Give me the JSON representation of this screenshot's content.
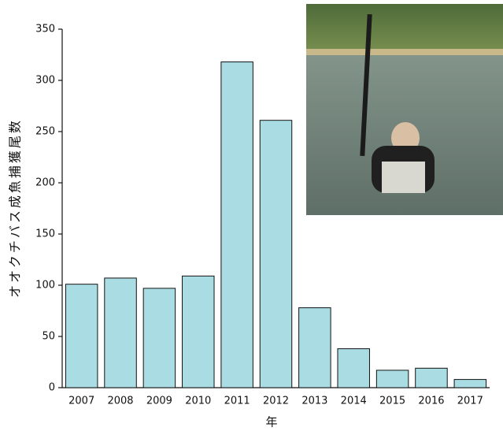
{
  "chart_data": {
    "type": "bar",
    "y_label": "オオクチバス成魚捕獲尾数",
    "x_label": "年",
    "categories": [
      "2007",
      "2008",
      "2009",
      "2010",
      "2011",
      "2012",
      "2013",
      "2014",
      "2015",
      "2016",
      "2017"
    ],
    "values": [
      101,
      107,
      97,
      109,
      318,
      261,
      78,
      38,
      17,
      19,
      8
    ],
    "color": "#aadde3",
    "ylim": [
      0,
      350
    ],
    "yticks": [
      0,
      50,
      100,
      150,
      200,
      250,
      300,
      350
    ],
    "grid": false
  }
}
